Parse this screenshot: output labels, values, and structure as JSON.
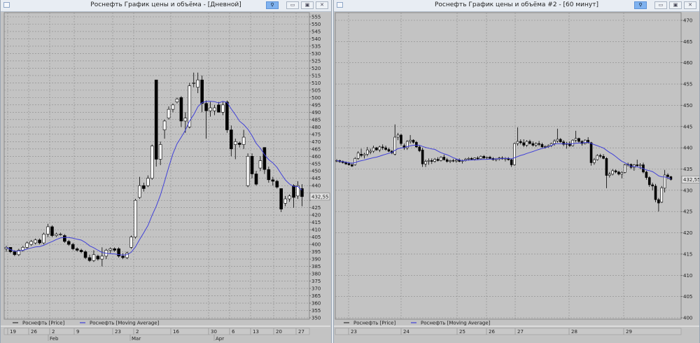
{
  "windows": [
    {
      "title": "Роснефть График цены и объёма - [Дневной]",
      "buttons": {
        "pin": "pin-icon",
        "minimize": "▭",
        "maximize": "▣",
        "close": "✕"
      },
      "legend": {
        "price": "Роснефть [Price]",
        "ma": "Роснефть [Moving Average]"
      },
      "price_tag": "432,55",
      "date_labels": [
        "19",
        "26",
        "2",
        "9",
        "23",
        "2",
        "16",
        "30",
        "6",
        "13",
        "20",
        "27"
      ],
      "month_labels": [
        "Feb",
        "Mar",
        "Apr"
      ],
      "y_axis": {
        "min": 350,
        "max": 555,
        "step": 5
      },
      "chart_data": {
        "type": "candlestick",
        "ohlc": [
          [
            397,
            399,
            395,
            398
          ],
          [
            398,
            398,
            394,
            395
          ],
          [
            395,
            396,
            392,
            393
          ],
          [
            393,
            397,
            392,
            396
          ],
          [
            396,
            399,
            395,
            398
          ],
          [
            398,
            402,
            397,
            401
          ],
          [
            400,
            403,
            399,
            402
          ],
          [
            401,
            404,
            400,
            403
          ],
          [
            403,
            404,
            400,
            401
          ],
          [
            401,
            408,
            400,
            407
          ],
          [
            407,
            414,
            405,
            412
          ],
          [
            412,
            413,
            405,
            406
          ],
          [
            406,
            408,
            405,
            407
          ],
          [
            407,
            408,
            406,
            407
          ],
          [
            406,
            407,
            401,
            402
          ],
          [
            402,
            403,
            399,
            400
          ],
          [
            400,
            401,
            396,
            397
          ],
          [
            397,
            398,
            395,
            396
          ],
          [
            396,
            397,
            394,
            395
          ],
          [
            395,
            396,
            390,
            391
          ],
          [
            391,
            393,
            388,
            389
          ],
          [
            389,
            396,
            388,
            393
          ],
          [
            392,
            393,
            389,
            390
          ],
          [
            390,
            398,
            385,
            392
          ],
          [
            392,
            397,
            390,
            396
          ],
          [
            396,
            398,
            394,
            397
          ],
          [
            397,
            398,
            395,
            396
          ],
          [
            397,
            398,
            391,
            392
          ],
          [
            392,
            394,
            390,
            391
          ],
          [
            391,
            395,
            390,
            394
          ],
          [
            398,
            406,
            397,
            405
          ],
          [
            405,
            431,
            404,
            430
          ],
          [
            432,
            446,
            431,
            440
          ],
          [
            440,
            442,
            436,
            438
          ],
          [
            440,
            447,
            439,
            445
          ],
          [
            445,
            468,
            444,
            467
          ],
          [
            512,
            512,
            453,
            458
          ],
          [
            458,
            470,
            454,
            468
          ],
          [
            478,
            485,
            472,
            484
          ],
          [
            486,
            494,
            485,
            492
          ],
          [
            492,
            496,
            490,
            495
          ],
          [
            497,
            500,
            496,
            499
          ],
          [
            500,
            501,
            480,
            484
          ],
          [
            484,
            490,
            476,
            486
          ],
          [
            480,
            510,
            479,
            508
          ],
          [
            510,
            517,
            507,
            510
          ],
          [
            507,
            517,
            503,
            512
          ],
          [
            512,
            515,
            490,
            496
          ],
          [
            496,
            498,
            472,
            491
          ],
          [
            491,
            497,
            487,
            493
          ],
          [
            491,
            495,
            488,
            493
          ],
          [
            495,
            497,
            490,
            490
          ],
          [
            490,
            497,
            488,
            495
          ],
          [
            497,
            498,
            476,
            478
          ],
          [
            478,
            481,
            460,
            465
          ],
          [
            468,
            472,
            458,
            470
          ],
          [
            469,
            470,
            466,
            468
          ],
          [
            468,
            478,
            465,
            473
          ],
          [
            440,
            462,
            439,
            460
          ],
          [
            460,
            462,
            445,
            448
          ],
          [
            448,
            450,
            440,
            441
          ],
          [
            452,
            460,
            450,
            457
          ],
          [
            466,
            466,
            448,
            451
          ],
          [
            451,
            453,
            442,
            444
          ],
          [
            444,
            446,
            440,
            443
          ],
          [
            443,
            444,
            438,
            439
          ],
          [
            438,
            438,
            422,
            424
          ],
          [
            428,
            433,
            426,
            431
          ],
          [
            431,
            434,
            429,
            433
          ],
          [
            440,
            441,
            425,
            432
          ],
          [
            433,
            443,
            431,
            440
          ],
          [
            438,
            441,
            426,
            432.55
          ]
        ],
        "series": [
          "Роснефть [Price]",
          "Роснефть [Moving Average]"
        ],
        "last_price": 432.55,
        "grid": true
      }
    },
    {
      "title": "Роснефть График цены и объёма #2 - [60 минут]",
      "buttons": {
        "pin": "pin-icon",
        "minimize": "▭",
        "maximize": "▣",
        "close": "✕"
      },
      "legend": {
        "price": "Роснефть [Price]",
        "ma": "Роснефть [Moving Average]"
      },
      "price_tag": "432,55",
      "date_labels": [
        "23",
        "24",
        "25",
        "26",
        "27",
        "28",
        "29"
      ],
      "month_labels": [],
      "y_axis": {
        "min": 400,
        "max": 470,
        "step": 5
      },
      "chart_data": {
        "type": "candlestick",
        "ohlc": [
          [
            437,
            437.3,
            436.6,
            437
          ],
          [
            437,
            437.2,
            436.5,
            436.7
          ],
          [
            436.8,
            437,
            436.3,
            436.5
          ],
          [
            436.5,
            436.8,
            436,
            436.2
          ],
          [
            436.3,
            436.6,
            435.8,
            436
          ],
          [
            436,
            436.5,
            435.5,
            435.7
          ],
          [
            436,
            437.8,
            435.8,
            437.5
          ],
          [
            437.5,
            439.2,
            437.2,
            438.8
          ],
          [
            438.5,
            439.8,
            437.8,
            438.2
          ],
          [
            438.2,
            438.8,
            437.5,
            438.5
          ],
          [
            438.5,
            440.2,
            438,
            439.5
          ],
          [
            439,
            439.8,
            438.5,
            439.2
          ],
          [
            439.2,
            440.5,
            438.8,
            440
          ],
          [
            440,
            440.2,
            439.3,
            439.5
          ],
          [
            439.5,
            440.5,
            439,
            440.2
          ],
          [
            440.2,
            440.8,
            439.5,
            440
          ],
          [
            440,
            440.5,
            439.3,
            439.6
          ],
          [
            439.6,
            440,
            439,
            439.2
          ],
          [
            439.2,
            439.5,
            438.5,
            438.8
          ],
          [
            438.5,
            445.5,
            438.2,
            442.5
          ],
          [
            442.5,
            443.5,
            441.8,
            443
          ],
          [
            443,
            443.3,
            440.5,
            441
          ],
          [
            440.5,
            441,
            439.5,
            440
          ],
          [
            440,
            441.8,
            439.5,
            441.5
          ],
          [
            441.5,
            443,
            441,
            441.8
          ],
          [
            441.8,
            442,
            441,
            441.3
          ],
          [
            441.3,
            441.6,
            440,
            440.2
          ],
          [
            440.2,
            440.6,
            439,
            439.3
          ],
          [
            439.5,
            440,
            435.5,
            436.2
          ],
          [
            436.2,
            437.2,
            435.5,
            436.8
          ],
          [
            436.8,
            437.5,
            436,
            437
          ],
          [
            437,
            437.5,
            436.2,
            436.8
          ],
          [
            436.8,
            437.6,
            436.5,
            437.3
          ],
          [
            437.3,
            437.8,
            436.8,
            437
          ],
          [
            437,
            438,
            436.8,
            437.8
          ],
          [
            437.8,
            438.4,
            437,
            437.2
          ],
          [
            437.2,
            437.6,
            436.5,
            436.8
          ],
          [
            436.8,
            437.2,
            436.4,
            437
          ],
          [
            437,
            437.4,
            436.6,
            436.9
          ],
          [
            436.9,
            437.3,
            436.5,
            437.1
          ],
          [
            437.1,
            437.5,
            436.6,
            436.8
          ],
          [
            436.8,
            437.2,
            436.3,
            437
          ],
          [
            437,
            437.6,
            436.8,
            437.3
          ],
          [
            437.3,
            437.8,
            437,
            437.5
          ],
          [
            437.5,
            437.8,
            437.1,
            437.3
          ],
          [
            437.3,
            437.7,
            437,
            437.6
          ],
          [
            437.6,
            438,
            437.2,
            437.4
          ],
          [
            437.4,
            438.2,
            437.2,
            438
          ],
          [
            438,
            438.3,
            437.4,
            437.6
          ],
          [
            437.6,
            437.9,
            437.2,
            437.8
          ],
          [
            437.8,
            438.1,
            437.3,
            437.5
          ],
          [
            437.5,
            437.8,
            437,
            437.2
          ],
          [
            437.2,
            437.6,
            436.8,
            437.4
          ],
          [
            437.4,
            437.9,
            437,
            437.6
          ],
          [
            437.6,
            438,
            437.2,
            437.4
          ],
          [
            437.4,
            437.8,
            436.8,
            437.5
          ],
          [
            437.5,
            437.8,
            437,
            437.2
          ],
          [
            437.2,
            437.5,
            435.5,
            436
          ],
          [
            436,
            441.2,
            435.8,
            441
          ],
          [
            441,
            444.8,
            440.5,
            441.5
          ],
          [
            441.5,
            442,
            440.8,
            441.2
          ],
          [
            441.2,
            442,
            440.2,
            440.6
          ],
          [
            440.6,
            441.8,
            440.2,
            441.5
          ],
          [
            441.5,
            441.9,
            440.8,
            441
          ],
          [
            441,
            441.5,
            440.3,
            440.6
          ],
          [
            440.6,
            441.3,
            440.2,
            441
          ],
          [
            441,
            441.6,
            440.4,
            440.8
          ],
          [
            440.8,
            441.2,
            440,
            440.2
          ],
          [
            440.2,
            440.6,
            439.8,
            440.3
          ],
          [
            440.3,
            440.8,
            440,
            440.5
          ],
          [
            440.5,
            441.2,
            440.2,
            441
          ],
          [
            441,
            442,
            440.5,
            441.6
          ],
          [
            441.6,
            444.5,
            441.2,
            442
          ],
          [
            442,
            442.3,
            441.2,
            441.4
          ],
          [
            441.4,
            441.8,
            440.4,
            440.8
          ],
          [
            440.8,
            441.4,
            439.8,
            441
          ],
          [
            441,
            441.5,
            440.2,
            440.5
          ],
          [
            440.5,
            442,
            440.3,
            441.8
          ],
          [
            441.8,
            444,
            441.3,
            442.2
          ],
          [
            442.2,
            442.4,
            441.2,
            441.5
          ],
          [
            441.5,
            441.8,
            440.5,
            441
          ],
          [
            441,
            442,
            440.8,
            441.8
          ],
          [
            441.8,
            442.5,
            441,
            441.2
          ],
          [
            441.2,
            441.4,
            435.8,
            436.5
          ],
          [
            436.5,
            437.6,
            436,
            437.2
          ],
          [
            437.2,
            438.5,
            437,
            438.2
          ],
          [
            438.2,
            438.6,
            437.6,
            438
          ],
          [
            438,
            438.5,
            437.3,
            437.5
          ],
          [
            437.5,
            437.8,
            430.5,
            433.5
          ],
          [
            433.5,
            434.3,
            433,
            433.8
          ],
          [
            433.8,
            435,
            433.5,
            434.6
          ],
          [
            434.6,
            434.9,
            434,
            434.3
          ],
          [
            434.3,
            434.6,
            433.5,
            433.8
          ],
          [
            433.8,
            434.5,
            432.8,
            434.2
          ],
          [
            434.2,
            436.2,
            434,
            436
          ],
          [
            436,
            436.5,
            435.6,
            436.1
          ],
          [
            436.1,
            436.3,
            435,
            435.4
          ],
          [
            435.4,
            436.2,
            434.6,
            436
          ],
          [
            436,
            437.2,
            435.5,
            435.8
          ],
          [
            435.8,
            436.4,
            435,
            436
          ],
          [
            436,
            436.5,
            434,
            434.3
          ],
          [
            434.3,
            434.6,
            432.5,
            433
          ],
          [
            433,
            433.3,
            430.8,
            431.3
          ],
          [
            431.3,
            431.8,
            430,
            431
          ],
          [
            431,
            431.5,
            427.2,
            427.8
          ],
          [
            427.8,
            428.2,
            425,
            427
          ],
          [
            427.2,
            431,
            427,
            430.6
          ],
          [
            430.5,
            434.8,
            429.5,
            433.6
          ],
          [
            433.6,
            434,
            432.6,
            433.2
          ],
          [
            433.2,
            433.4,
            432.3,
            432.55
          ]
        ],
        "series": [
          "Роснефть [Price]",
          "Роснефть [Moving Average]"
        ],
        "last_price": 432.55,
        "grid": true
      }
    }
  ],
  "colors": {
    "plot_bg": "#c3c3c3",
    "ma_line": "#4040d8",
    "grid": "#8a8a8a",
    "candle": "#000000",
    "candle_up": "#ffffff"
  }
}
